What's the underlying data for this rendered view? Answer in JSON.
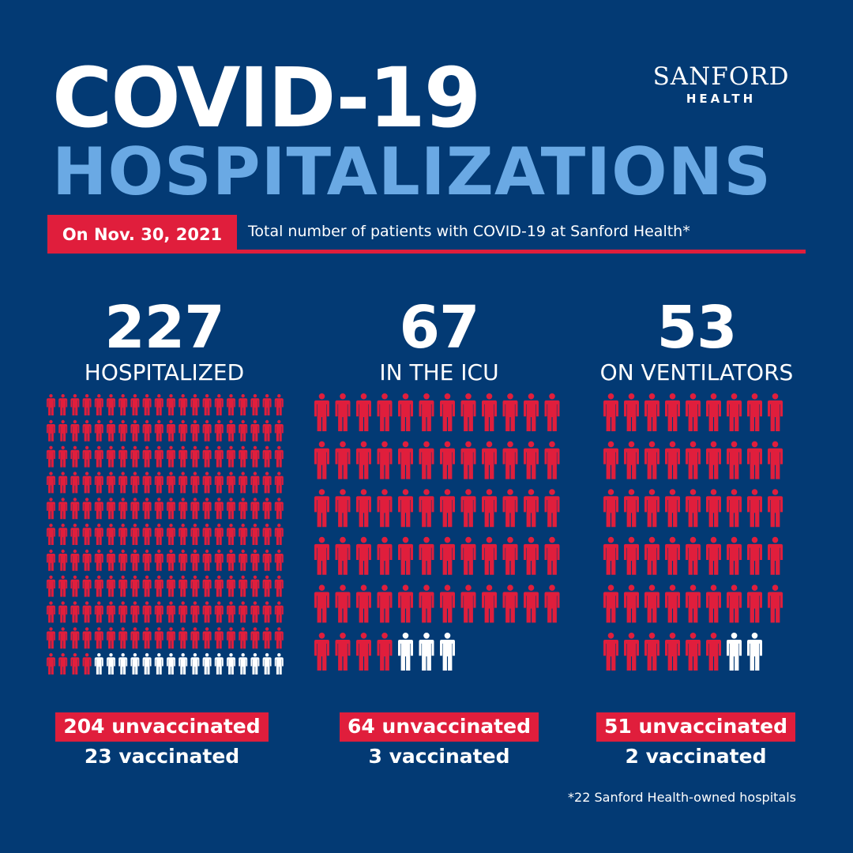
{
  "header": {
    "title_line1": "COVID-19",
    "title_line2": "HOSPITALIZATIONS",
    "logo_name": "SANFORD",
    "logo_sub": "HEALTH"
  },
  "date_bar": {
    "date": "On Nov. 30, 2021",
    "description": "Total number of patients with COVID-19 at Sanford Health*"
  },
  "stats": [
    {
      "total": "227",
      "label": "HOSPITALIZED",
      "unvaccinated": 204,
      "vaccinated": 23,
      "unvaccinated_text": "204 unvaccinated",
      "vaccinated_text": "23 vaccinated"
    },
    {
      "total": "67",
      "label": "IN THE ICU",
      "unvaccinated": 64,
      "vaccinated": 3,
      "unvaccinated_text": "64 unvaccinated",
      "vaccinated_text": "3 vaccinated"
    },
    {
      "total": "53",
      "label": "ON VENTILATORS",
      "unvaccinated": 51,
      "vaccinated": 2,
      "unvaccinated_text": "51 unvaccinated",
      "vaccinated_text": "2 vaccinated"
    }
  ],
  "footnote": "*22 Sanford Health-owned hospitals",
  "colors": {
    "background": "#033a74",
    "unvaccinated": "#e01e3c",
    "vaccinated": "#ffffff",
    "title_accent": "#6aa9e4"
  },
  "icons": {
    "person": "person-icon"
  }
}
